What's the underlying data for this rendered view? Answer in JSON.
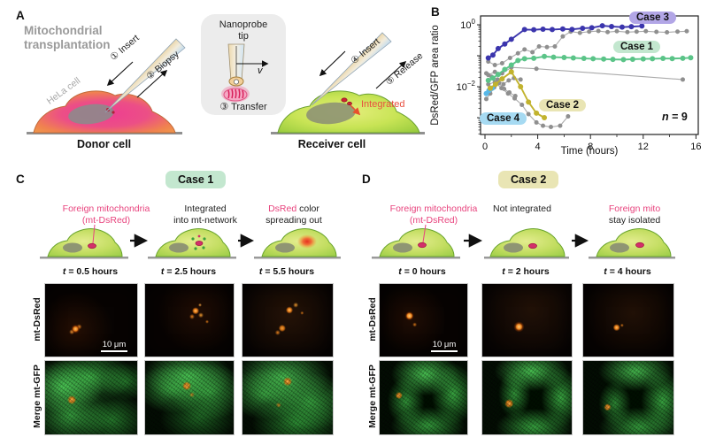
{
  "figure": {
    "panel_a": {
      "label": "A",
      "title_l1": "Mitochondrial",
      "title_l2": "transplantation",
      "hela_cell": "HeLa cell",
      "step1": "① Insert",
      "step2": "② Biopsy",
      "step3": "③ Transfer",
      "step4": "④ Insert",
      "step5": "⑤ Release",
      "nanoprobe_l1": "Nanoprobe",
      "nanoprobe_l2": "tip",
      "velocity": "v",
      "integrated": "Integrated",
      "donor": "Donor cell",
      "receiver": "Receiver cell"
    },
    "panel_b": {
      "label": "B",
      "n_italic": "n",
      "n_rest": " = 9"
    },
    "panel_c": {
      "label": "C",
      "badge": "Case 1",
      "captions": {
        "c1_l1": "Foreign mitochondria",
        "c1_l2": "(mt-DsRed)",
        "c2_l1": "Integrated",
        "c2_l2": "into mt-network",
        "c3_l1_pink": "DsRed",
        "c3_l1_rest": " color",
        "c3_l2": "spreading out"
      },
      "times": [
        {
          "var": "t",
          "rest": " = 0.5 hours"
        },
        {
          "var": "t",
          "rest": " = 2.5 hours"
        },
        {
          "var": "t",
          "rest": " = 5.5 hours"
        }
      ],
      "row1_label": "mt-DsRed",
      "row2_label": "Merge mt-GFP",
      "scale_bar": "10 μm"
    },
    "panel_d": {
      "label": "D",
      "badge": "Case 2",
      "captions": {
        "c1_l1": "Foreign mitochondria",
        "c1_l2": "(mt-DsRed)",
        "c2_l1": "Not integrated",
        "c3_l1": "Foreign mito",
        "c3_l2": "stay isolated"
      },
      "times": [
        {
          "var": "t",
          "rest": " = 0 hours"
        },
        {
          "var": "t",
          "rest": " = 2 hours"
        },
        {
          "var": "t",
          "rest": " = 4 hours"
        }
      ],
      "row1_label": "mt-DsRed",
      "row2_label": "Merge mt-GFP",
      "scale_bar": "10 μm"
    }
  },
  "chart_data": {
    "type": "line",
    "xlabel": "Time (hours)",
    "ylabel": "DsRed/GFP area ratio",
    "xlim": [
      0,
      16
    ],
    "xticks": [
      0,
      4,
      8,
      12,
      16
    ],
    "xminorticks": [
      2,
      6,
      10,
      14
    ],
    "yscale": "log",
    "ylim": [
      0.0003,
      2
    ],
    "yticks": [
      {
        "value": 1,
        "base": "10",
        "exp": "0"
      },
      {
        "value": 0.01,
        "base": "10",
        "exp": "−2"
      }
    ],
    "grid": false,
    "legend_position": "inline-badges",
    "sample_size_annotation": "n = 9",
    "series": [
      {
        "name": "Case 3",
        "color": "#3b35ad",
        "badge_color": "#b2a6e6",
        "points": [
          [
            0.25,
            0.085
          ],
          [
            0.6,
            0.105
          ],
          [
            1,
            0.17
          ],
          [
            1.5,
            0.24
          ],
          [
            2,
            0.34
          ],
          [
            3,
            0.7
          ],
          [
            3.7,
            0.69
          ],
          [
            4.4,
            0.72
          ],
          [
            5.1,
            0.7
          ],
          [
            5.9,
            0.73
          ],
          [
            6.6,
            0.71
          ],
          [
            7.4,
            0.77
          ],
          [
            8.1,
            0.8
          ],
          [
            8.9,
            0.93
          ],
          [
            9.6,
            0.88
          ],
          [
            10.4,
            0.84
          ],
          [
            11.1,
            0.87
          ],
          [
            11.9,
            0.91
          ]
        ]
      },
      {
        "name": "Case 1",
        "color": "#5bc488",
        "badge_color": "#c3e7cf",
        "points": [
          [
            0.25,
            0.016
          ],
          [
            0.6,
            0.019
          ],
          [
            1,
            0.025
          ],
          [
            1.5,
            0.036
          ],
          [
            2,
            0.05
          ],
          [
            2.5,
            0.07
          ],
          [
            3,
            0.08
          ],
          [
            3.7,
            0.083
          ],
          [
            4.5,
            0.095
          ],
          [
            5.2,
            0.09
          ],
          [
            6,
            0.088
          ],
          [
            6.7,
            0.085
          ],
          [
            7.5,
            0.082
          ],
          [
            8.2,
            0.08
          ],
          [
            9,
            0.078
          ],
          [
            9.7,
            0.076
          ],
          [
            10.5,
            0.075
          ],
          [
            11.2,
            0.077
          ],
          [
            12,
            0.079
          ],
          [
            12.7,
            0.08
          ],
          [
            13.5,
            0.082
          ],
          [
            14.2,
            0.081
          ],
          [
            15,
            0.083
          ],
          [
            15.6,
            0.086
          ]
        ]
      },
      {
        "name": "Case 2",
        "color": "#c2b32e",
        "badge_color": "#e9e5b4",
        "points": [
          [
            0.4,
            0.009
          ],
          [
            0.8,
            0.012
          ],
          [
            1.3,
            0.018
          ],
          [
            2,
            0.03
          ],
          [
            2.7,
            0.01
          ],
          [
            3.3,
            0.0032
          ],
          [
            3.9,
            0.0014
          ],
          [
            4.5,
            0.001
          ]
        ]
      },
      {
        "name": "Case 4",
        "color": "#58b8e8",
        "badge_color": "#a6daf2",
        "points": [
          [
            0.1,
            0.006
          ],
          [
            0.3,
            0.0075
          ],
          [
            0.55,
            0.009
          ]
        ]
      },
      {
        "name": "",
        "color": "#aaaaaa",
        "gray": true,
        "marker": "#8f8f8f",
        "points": [
          [
            0.25,
            0.065
          ],
          [
            0.75,
            0.05
          ],
          [
            1.3,
            0.057
          ],
          [
            1.9,
            0.085
          ],
          [
            2.5,
            0.12
          ],
          [
            3,
            0.16
          ],
          [
            3.6,
            0.13
          ],
          [
            4.1,
            0.2
          ],
          [
            4.7,
            0.19
          ],
          [
            5.3,
            0.2
          ],
          [
            5.9,
            0.42
          ],
          [
            6.5,
            0.6
          ],
          [
            7.2,
            0.55
          ],
          [
            7.9,
            0.6
          ],
          [
            8.6,
            0.63
          ],
          [
            9.3,
            0.58
          ],
          [
            10,
            0.62
          ],
          [
            10.8,
            0.58
          ],
          [
            11.5,
            0.6
          ],
          [
            12.2,
            0.62
          ],
          [
            13,
            0.59
          ],
          [
            13.8,
            0.57
          ],
          [
            14.6,
            0.6
          ],
          [
            15.3,
            0.62
          ]
        ]
      },
      {
        "name": "",
        "color": "#aaaaaa",
        "gray": true,
        "marker": "#8f8f8f",
        "points": [
          [
            0.25,
            0.024
          ],
          [
            0.75,
            0.03
          ],
          [
            1.3,
            0.027
          ],
          [
            2,
            0.042
          ],
          [
            3.9,
            0.038
          ],
          [
            15,
            0.017
          ]
        ]
      },
      {
        "name": "",
        "color": "#aaaaaa",
        "gray": true,
        "marker": "#8f8f8f",
        "points": [
          [
            0.25,
            0.012
          ],
          [
            0.75,
            0.014
          ],
          [
            1.25,
            0.009
          ],
          [
            1.75,
            0.006
          ],
          [
            2.25,
            0.0042
          ],
          [
            2.8,
            0.0026
          ],
          [
            3.3,
            0.0013
          ],
          [
            3.9,
            0.0007
          ],
          [
            4.4,
            0.00055
          ],
          [
            5,
            0.0005
          ],
          [
            5.7,
            0.00055
          ],
          [
            6.3,
            0.0011
          ]
        ]
      },
      {
        "name": "",
        "color": "#aaaaaa",
        "gray": true,
        "marker": "#8f8f8f",
        "points": [
          [
            0.1,
            0.004
          ],
          [
            0.4,
            0.006
          ],
          [
            0.7,
            0.0095
          ],
          [
            1.05,
            0.013
          ],
          [
            1.45,
            0.0085
          ],
          [
            1.85,
            0.0065
          ],
          [
            2.3,
            0.005
          ]
        ]
      },
      {
        "name": "",
        "color": "#aaaaaa",
        "gray": true,
        "marker": "#8f8f8f",
        "points": [
          [
            0.1,
            0.027
          ],
          [
            0.5,
            0.021
          ],
          [
            0.95,
            0.017
          ],
          [
            1.4,
            0.012
          ],
          [
            1.8,
            0.016
          ],
          [
            2.2,
            0.019
          ],
          [
            2.7,
            0.017
          ]
        ]
      }
    ]
  }
}
